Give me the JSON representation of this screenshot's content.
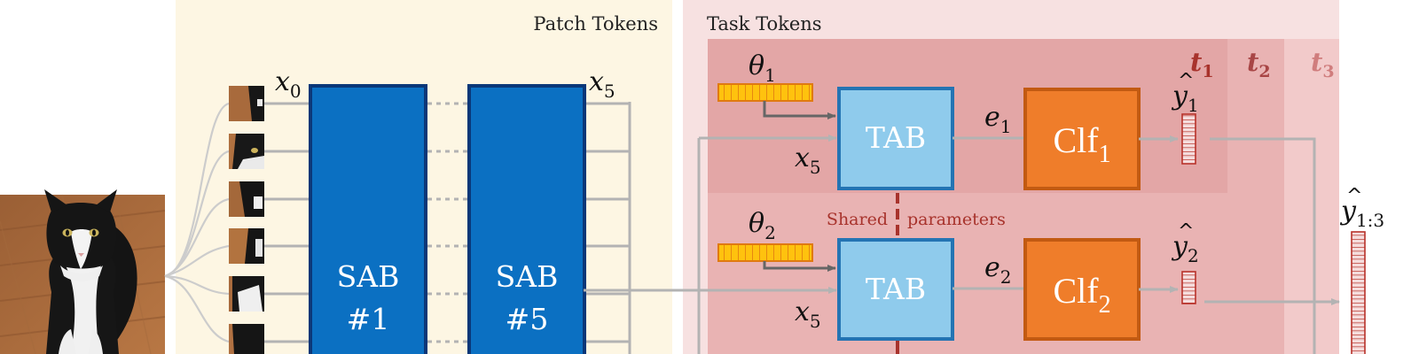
{
  "sections": {
    "patch_title": "Patch Tokens",
    "task_title": "Task Tokens"
  },
  "sab_blocks": [
    {
      "line1": "SAB",
      "line2": "#1"
    },
    {
      "line1": "SAB",
      "line2": "#5"
    }
  ],
  "token_labels": {
    "x0_base": "x",
    "x0_sub": "0",
    "x5_base": "x",
    "x5_sub": "5"
  },
  "task_labels": {
    "t1_base": "t",
    "t1_sub": "1",
    "t2_base": "t",
    "t2_sub": "2",
    "t3_base": "t",
    "t3_sub": "3"
  },
  "rows": [
    {
      "theta_base": "θ",
      "theta_sub": "1",
      "tab": "TAB",
      "x_base": "x",
      "x_sub": "5",
      "e_base": "e",
      "e_sub": "1",
      "clf_base": "Clf",
      "clf_sub": "1",
      "yhat_base": "y",
      "yhat_sub": "1"
    },
    {
      "theta_base": "θ",
      "theta_sub": "2",
      "tab": "TAB",
      "x_base": "x",
      "x_sub": "5",
      "e_base": "e",
      "e_sub": "2",
      "clf_base": "Clf",
      "clf_sub": "2",
      "yhat_base": "y",
      "yhat_sub": "2"
    }
  ],
  "shared": {
    "left": "Shared",
    "right": "parameters"
  },
  "output": {
    "base": "y",
    "sub": "1:3"
  },
  "colors": {
    "patch_bg": "#fdf6e3",
    "task_bg": "#f7e1e1",
    "t3_region": "#f2caca",
    "t2_region": "#e9b3b3",
    "t1_region": "#e3a6a6",
    "sab_fill": "#0b70c2",
    "sab_border": "#0a3778",
    "tab_fill": "#8fcbec",
    "tab_border": "#2474b3",
    "clf_fill": "#ef7d2a",
    "clf_border": "#c25a12",
    "theta_fill": "#ffc20e",
    "theta_border": "#e07a10",
    "dark_red": "#a8332c",
    "t2_color": "#a84545",
    "t3_color": "#d07d7d",
    "line_gray": "#b3b3b3",
    "arrow_dark": "#666666"
  }
}
